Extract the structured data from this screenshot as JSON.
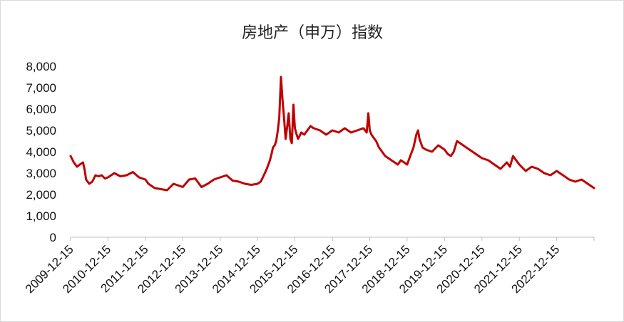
{
  "chart_data": {
    "type": "line",
    "title": "房地产（申万）指数",
    "xlabel": "",
    "ylabel": "",
    "ylim": [
      0,
      8000
    ],
    "yticks": [
      "0",
      "1,000",
      "2,000",
      "3,000",
      "4,000",
      "5,000",
      "6,000",
      "7,000",
      "8,000"
    ],
    "ytick_values": [
      0,
      1000,
      2000,
      3000,
      4000,
      5000,
      6000,
      7000,
      8000
    ],
    "xticks": [
      "2009-12-15",
      "2010-12-15",
      "2011-12-15",
      "2012-12-15",
      "2013-12-15",
      "2014-12-15",
      "2015-12-15",
      "2016-12-15",
      "2017-12-15",
      "2018-12-15",
      "2019-12-15",
      "2020-12-15",
      "2021-12-15",
      "2022-12-15"
    ],
    "xlim": [
      "2009-12-15",
      "2023-12-15"
    ],
    "grid": false,
    "legend": "none",
    "line_color": "#c00000",
    "series": [
      {
        "x": [
          "2009-12-15",
          "2010-01-15",
          "2010-02-15",
          "2010-03-15",
          "2010-04-15",
          "2010-05-01",
          "2010-05-15",
          "2010-06-15",
          "2010-07-15",
          "2010-08-15",
          "2010-09-15",
          "2010-10-15",
          "2010-11-15",
          "2010-12-15",
          "2011-02-15",
          "2011-04-15",
          "2011-06-15",
          "2011-08-15",
          "2011-10-15",
          "2011-12-15",
          "2012-01-15",
          "2012-03-15",
          "2012-05-15",
          "2012-07-15",
          "2012-09-15",
          "2012-12-15",
          "2013-02-15",
          "2013-04-15",
          "2013-06-15",
          "2013-08-15",
          "2013-10-15",
          "2013-12-15",
          "2014-02-15",
          "2014-04-15",
          "2014-06-15",
          "2014-08-15",
          "2014-10-15",
          "2014-12-15",
          "2015-01-15",
          "2015-02-15",
          "2015-03-15",
          "2015-04-15",
          "2015-05-01",
          "2015-05-15",
          "2015-06-01",
          "2015-06-15",
          "2015-07-01",
          "2015-07-15",
          "2015-08-01",
          "2015-08-15",
          "2015-09-01",
          "2015-09-15",
          "2015-10-01",
          "2015-10-15",
          "2015-11-01",
          "2015-11-15",
          "2015-12-01",
          "2015-12-15",
          "2016-01-01",
          "2016-01-15",
          "2016-02-15",
          "2016-03-15",
          "2016-04-15",
          "2016-05-15",
          "2016-06-15",
          "2016-08-15",
          "2016-10-15",
          "2016-12-15",
          "2017-02-15",
          "2017-04-15",
          "2017-06-15",
          "2017-08-15",
          "2017-10-15",
          "2017-11-15",
          "2017-12-01",
          "2017-12-15",
          "2018-01-01",
          "2018-01-15",
          "2018-02-15",
          "2018-03-15",
          "2018-04-15",
          "2018-05-15",
          "2018-06-15",
          "2018-07-15",
          "2018-08-15",
          "2018-09-15",
          "2018-10-15",
          "2018-11-15",
          "2018-12-15",
          "2019-01-15",
          "2019-02-15",
          "2019-03-15",
          "2019-04-01",
          "2019-04-15",
          "2019-05-15",
          "2019-06-15",
          "2019-08-15",
          "2019-10-15",
          "2019-12-15",
          "2020-01-15",
          "2020-02-15",
          "2020-03-15",
          "2020-04-15",
          "2020-06-15",
          "2020-07-15",
          "2020-08-15",
          "2020-09-15",
          "2020-10-15",
          "2020-12-15",
          "2021-02-15",
          "2021-04-15",
          "2021-06-15",
          "2021-08-15",
          "2021-09-15",
          "2021-10-15",
          "2021-12-15",
          "2022-02-15",
          "2022-04-15",
          "2022-06-15",
          "2022-08-15",
          "2022-10-15",
          "2022-12-15",
          "2023-02-15",
          "2023-04-15",
          "2023-06-15",
          "2023-08-15",
          "2023-10-15",
          "2023-12-15"
        ],
        "values": [
          3800,
          3500,
          3300,
          3400,
          3500,
          3150,
          2700,
          2500,
          2600,
          2900,
          2850,
          2900,
          2750,
          2800,
          3000,
          2850,
          2900,
          3050,
          2800,
          2700,
          2500,
          2300,
          2250,
          2200,
          2500,
          2350,
          2700,
          2750,
          2350,
          2500,
          2700,
          2800,
          2900,
          2650,
          2600,
          2500,
          2450,
          2500,
          2600,
          2900,
          3200,
          3600,
          3900,
          4200,
          4300,
          4500,
          5000,
          5600,
          7500,
          6500,
          5500,
          4600,
          5200,
          5800,
          4600,
          4400,
          6200,
          5100,
          4800,
          4600,
          4900,
          4800,
          5000,
          5200,
          5100,
          5000,
          4800,
          5000,
          4900,
          5100,
          4900,
          5000,
          5100,
          4900,
          5800,
          5000,
          4800,
          4700,
          4500,
          4200,
          4000,
          3800,
          3700,
          3600,
          3500,
          3400,
          3600,
          3500,
          3400,
          3800,
          4200,
          4800,
          5000,
          4600,
          4200,
          4100,
          4000,
          4300,
          4100,
          3900,
          3800,
          4000,
          4500,
          4300,
          4200,
          4100,
          4000,
          3900,
          3700,
          3600,
          3400,
          3200,
          3500,
          3300,
          3800,
          3400,
          3100,
          3300,
          3200,
          3000,
          2900,
          3100,
          2900,
          2700,
          2600,
          2700,
          2500,
          2300
        ]
      }
    ]
  }
}
